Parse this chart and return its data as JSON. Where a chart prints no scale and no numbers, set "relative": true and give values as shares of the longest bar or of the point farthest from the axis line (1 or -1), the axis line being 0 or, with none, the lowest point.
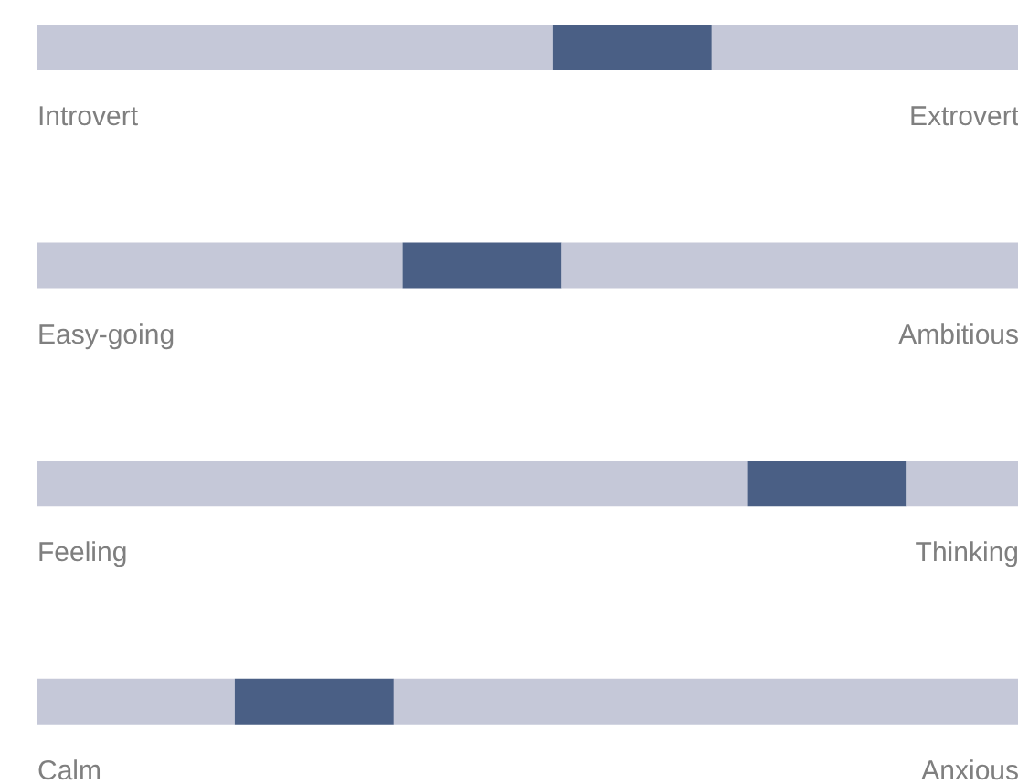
{
  "chart_data": {
    "type": "bar",
    "orientation": "horizontal",
    "stacked": true,
    "relative": true,
    "categories": [
      "Introvert",
      "Easy-going",
      "Feeling",
      "Calm"
    ],
    "series": [
      {
        "color": "#c5c8d8",
        "values": [
          0.525,
          0.372,
          0.723,
          0.201
        ]
      },
      {
        "color": "#4a5f85",
        "values": [
          0.162,
          0.162,
          0.162,
          0.162
        ]
      },
      {
        "color": "#c5c8d8",
        "values": [
          0.313,
          0.466,
          0.115,
          0.637
        ]
      }
    ],
    "annotations": [
      "Extrovert",
      "Ambitious",
      "Thinking",
      "Anxious"
    ]
  }
}
